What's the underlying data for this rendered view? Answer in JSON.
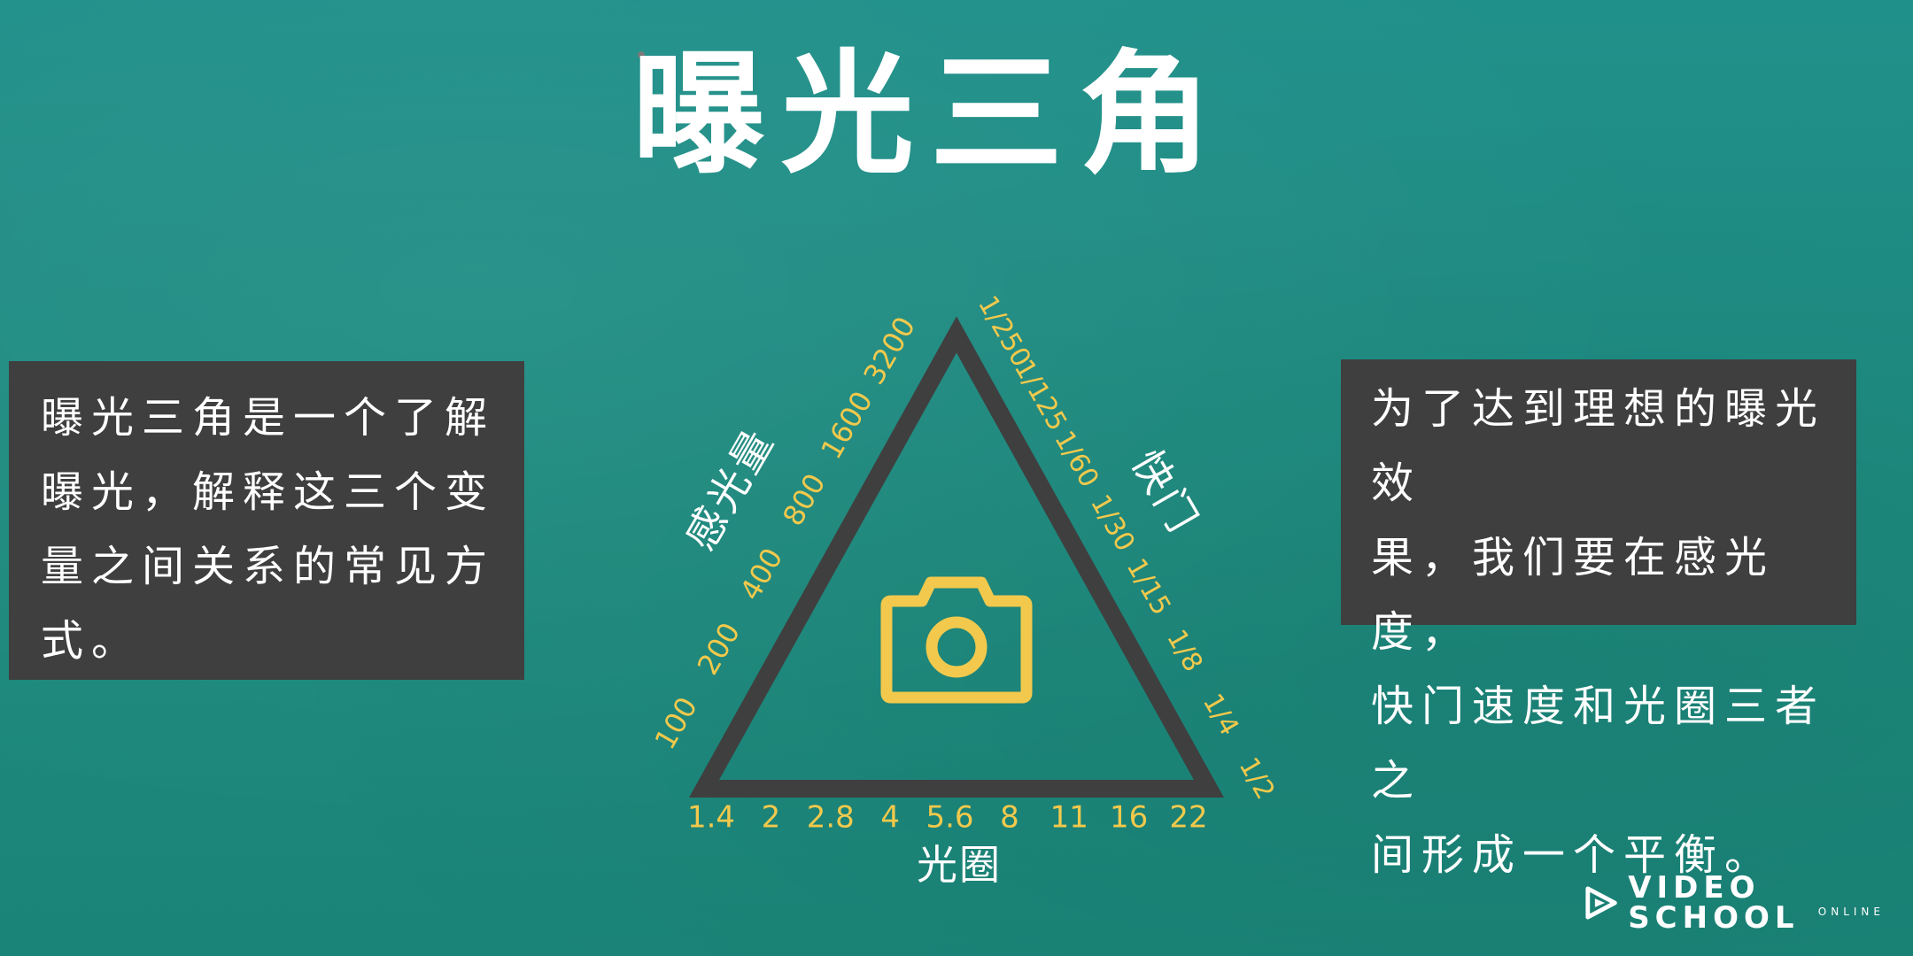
{
  "slide": {
    "title": "曝光三角",
    "left_text": [
      "曝光三角是一个了解",
      "曝光，解释这三个变",
      "量之间关系的常见方",
      "式。"
    ],
    "right_text": [
      "为了达到理想的曝光效",
      "果，我们要在感光度，",
      "快门速度和光圈三者之",
      "间形成一个平衡。"
    ]
  },
  "triangle": {
    "left_label": "感光量",
    "right_label": "快门",
    "bottom_label": "光圈",
    "iso_values": [
      "100",
      "200",
      "400",
      "800",
      "1600",
      "3200"
    ],
    "shutter_values": [
      "1/250",
      "1/125",
      "1/60",
      "1/30",
      "1/15",
      "1/8",
      "1/4",
      "1/2"
    ],
    "aperture_values": [
      "1.4",
      "2",
      "2.8",
      "4",
      "5.6",
      "8",
      "11",
      "16",
      "22"
    ],
    "center_icon": "camera-icon"
  },
  "colors": {
    "background": "#1e8a7e",
    "triangle": "#3f3f3f",
    "scale": "#f2c94c",
    "label": "#ffffff",
    "textbox": "#3f3f3f"
  },
  "logo": {
    "name": "VIDEO SCHOOL",
    "sub": "ONLINE",
    "icon": "play-logo-icon"
  }
}
